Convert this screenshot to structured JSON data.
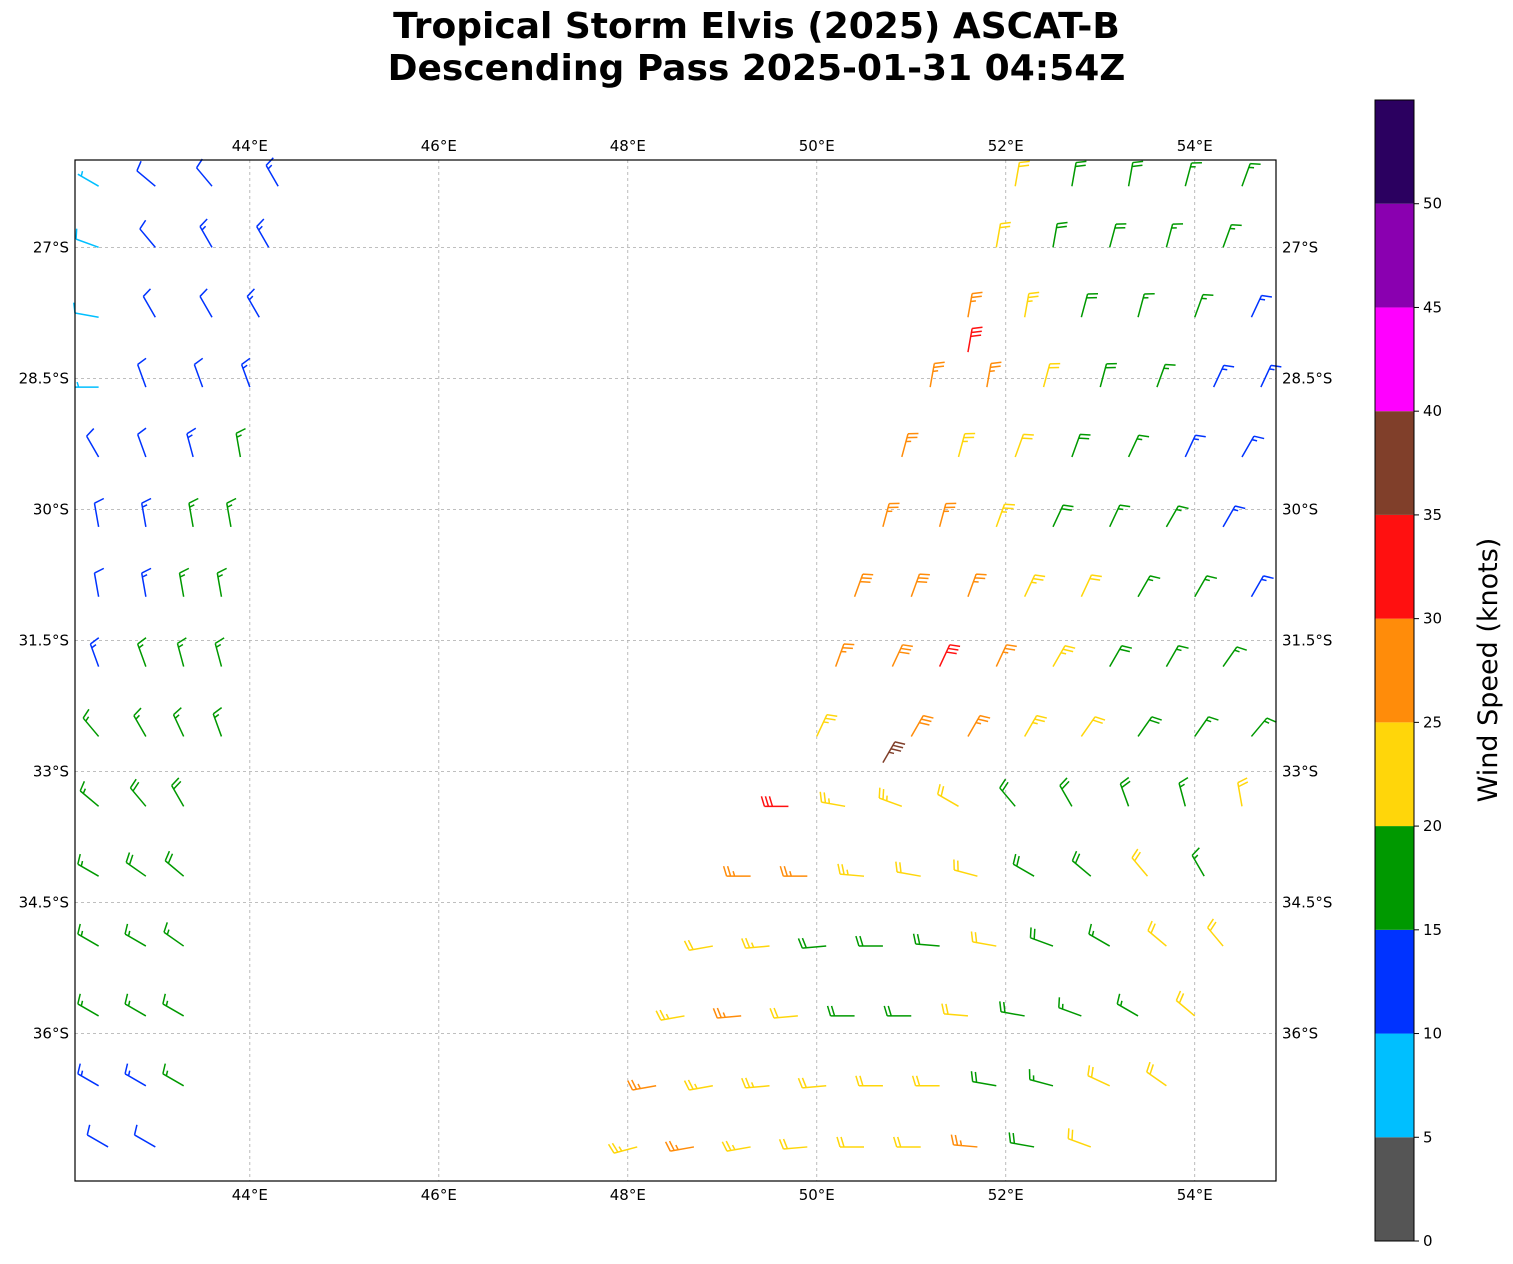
{
  "chart_data": {
    "type": "scatter",
    "subtype": "wind-barbs",
    "title": [
      "Tropical Storm Elvis (2025) ASCAT-B",
      "Descending Pass 2025-01-31 04:54Z"
    ],
    "xlim": [
      42.15,
      54.86
    ],
    "ylim": [
      -37.69,
      -26.0
    ],
    "x_ticks": [
      44,
      46,
      48,
      50,
      52,
      54
    ],
    "x_tick_labels": [
      "44°E",
      "46°E",
      "48°E",
      "50°E",
      "52°E",
      "54°E"
    ],
    "y_ticks": [
      -27,
      -28.5,
      -30,
      -31.5,
      -33,
      -34.5,
      -36
    ],
    "y_tick_labels": [
      "27°S",
      "28.5°S",
      "30°S",
      "31.5°S",
      "33°S",
      "34.5°S",
      "36°S"
    ],
    "grid": true,
    "colorbar": {
      "label": "Wind Speed (knots)",
      "range": [
        0,
        55
      ],
      "ticks": [
        0,
        5,
        10,
        15,
        20,
        25,
        30,
        35,
        40,
        45,
        50
      ],
      "tick_labels": [
        "0",
        "5",
        "10",
        "15",
        "20",
        "25",
        "30",
        "35",
        "40",
        "45",
        "50"
      ],
      "bins": [
        0,
        5,
        10,
        15,
        20,
        25,
        30,
        35,
        40,
        45,
        50,
        55
      ],
      "colors": [
        "#555555",
        "#00bfff",
        "#0033ff",
        "#009900",
        "#ffd60a",
        "#ff8c0a",
        "#ff1010",
        "#803f2a",
        "#ff00ff",
        "#8a00b0",
        "#2b0060"
      ]
    },
    "barb_fields": [
      "lon",
      "lat",
      "speed_kt",
      "dir_from_deg"
    ],
    "barbs": [
      [
        42.4,
        -26.3,
        7,
        300
      ],
      [
        43.0,
        -26.3,
        12,
        310
      ],
      [
        43.6,
        -26.3,
        12,
        320
      ],
      [
        44.3,
        -26.3,
        13,
        330
      ],
      [
        42.4,
        -27.0,
        8,
        290
      ],
      [
        43.0,
        -27.0,
        12,
        320
      ],
      [
        43.6,
        -27.0,
        13,
        330
      ],
      [
        44.2,
        -27.0,
        13,
        330
      ],
      [
        42.4,
        -27.8,
        8,
        280
      ],
      [
        43.0,
        -27.8,
        11,
        330
      ],
      [
        43.6,
        -27.8,
        12,
        330
      ],
      [
        44.1,
        -27.8,
        13,
        330
      ],
      [
        42.4,
        -28.6,
        7,
        270
      ],
      [
        42.9,
        -28.6,
        11,
        340
      ],
      [
        43.5,
        -28.6,
        12,
        340
      ],
      [
        44.0,
        -28.6,
        13,
        340
      ],
      [
        42.4,
        -29.4,
        11,
        330
      ],
      [
        42.9,
        -29.4,
        12,
        340
      ],
      [
        43.4,
        -29.4,
        13,
        345
      ],
      [
        43.9,
        -29.4,
        16,
        350
      ],
      [
        42.4,
        -30.2,
        12,
        350
      ],
      [
        42.9,
        -30.2,
        13,
        350
      ],
      [
        43.4,
        -30.2,
        16,
        350
      ],
      [
        43.8,
        -30.2,
        17,
        350
      ],
      [
        42.4,
        -31.0,
        12,
        350
      ],
      [
        42.9,
        -31.0,
        13,
        350
      ],
      [
        43.3,
        -31.0,
        16,
        350
      ],
      [
        43.7,
        -31.0,
        17,
        350
      ],
      [
        42.4,
        -31.8,
        13,
        340
      ],
      [
        42.9,
        -31.8,
        16,
        340
      ],
      [
        43.3,
        -31.8,
        17,
        345
      ],
      [
        43.7,
        -31.8,
        17,
        345
      ],
      [
        42.4,
        -32.6,
        16,
        320
      ],
      [
        42.9,
        -32.6,
        17,
        330
      ],
      [
        43.3,
        -32.6,
        17,
        335
      ],
      [
        43.7,
        -32.6,
        17,
        340
      ],
      [
        42.4,
        -33.4,
        17,
        310
      ],
      [
        42.9,
        -33.4,
        18,
        320
      ],
      [
        43.3,
        -33.4,
        18,
        330
      ],
      [
        42.4,
        -34.2,
        17,
        300
      ],
      [
        42.9,
        -34.2,
        18,
        305
      ],
      [
        43.3,
        -34.2,
        18,
        310
      ],
      [
        42.4,
        -35.0,
        16,
        300
      ],
      [
        42.9,
        -35.0,
        17,
        300
      ],
      [
        43.3,
        -35.0,
        17,
        305
      ],
      [
        42.4,
        -35.8,
        15,
        300
      ],
      [
        42.9,
        -35.8,
        16,
        300
      ],
      [
        43.3,
        -35.8,
        16,
        300
      ],
      [
        42.4,
        -36.6,
        13,
        300
      ],
      [
        42.9,
        -36.6,
        13,
        300
      ],
      [
        43.3,
        -36.6,
        15,
        300
      ],
      [
        42.5,
        -37.3,
        12,
        300
      ],
      [
        43.0,
        -37.3,
        12,
        300
      ],
      [
        52.1,
        -26.3,
        22,
        10
      ],
      [
        52.7,
        -26.3,
        18,
        10
      ],
      [
        53.3,
        -26.3,
        18,
        10
      ],
      [
        53.9,
        -26.3,
        17,
        15
      ],
      [
        54.5,
        -26.3,
        16,
        20
      ],
      [
        51.9,
        -27.0,
        22,
        10
      ],
      [
        52.5,
        -27.0,
        19,
        10
      ],
      [
        53.1,
        -27.0,
        18,
        15
      ],
      [
        53.7,
        -27.0,
        17,
        15
      ],
      [
        54.3,
        -27.0,
        16,
        20
      ],
      [
        51.6,
        -27.8,
        27,
        10
      ],
      [
        52.2,
        -27.8,
        23,
        10
      ],
      [
        52.8,
        -27.8,
        18,
        15
      ],
      [
        53.4,
        -27.8,
        17,
        15
      ],
      [
        54.0,
        -27.8,
        16,
        20
      ],
      [
        54.6,
        -27.8,
        14,
        25
      ],
      [
        51.6,
        -28.2,
        31,
        10
      ],
      [
        51.2,
        -28.6,
        27,
        10
      ],
      [
        51.8,
        -28.6,
        26,
        10
      ],
      [
        52.4,
        -28.6,
        22,
        15
      ],
      [
        53.0,
        -28.6,
        18,
        15
      ],
      [
        53.6,
        -28.6,
        17,
        20
      ],
      [
        54.2,
        -28.6,
        14,
        25
      ],
      [
        54.7,
        -28.6,
        13,
        25
      ],
      [
        50.9,
        -29.4,
        27,
        15
      ],
      [
        51.5,
        -29.4,
        24,
        15
      ],
      [
        52.1,
        -29.4,
        22,
        20
      ],
      [
        52.7,
        -29.4,
        18,
        20
      ],
      [
        53.3,
        -29.4,
        17,
        25
      ],
      [
        53.9,
        -29.4,
        14,
        25
      ],
      [
        54.5,
        -29.4,
        13,
        30
      ],
      [
        50.7,
        -30.2,
        27,
        15
      ],
      [
        51.3,
        -30.2,
        26,
        15
      ],
      [
        51.9,
        -30.2,
        23,
        20
      ],
      [
        52.5,
        -30.2,
        19,
        25
      ],
      [
        53.1,
        -30.2,
        17,
        25
      ],
      [
        53.7,
        -30.2,
        16,
        30
      ],
      [
        54.3,
        -30.2,
        14,
        30
      ],
      [
        50.4,
        -31.0,
        28,
        20
      ],
      [
        51.0,
        -31.0,
        28,
        20
      ],
      [
        51.6,
        -31.0,
        26,
        20
      ],
      [
        52.2,
        -31.0,
        23,
        25
      ],
      [
        52.8,
        -31.0,
        21,
        25
      ],
      [
        53.4,
        -31.0,
        17,
        30
      ],
      [
        54.0,
        -31.0,
        16,
        30
      ],
      [
        54.6,
        -31.0,
        14,
        30
      ],
      [
        50.2,
        -31.8,
        27,
        20
      ],
      [
        50.8,
        -31.8,
        29,
        25
      ],
      [
        51.3,
        -31.8,
        31,
        25
      ],
      [
        51.9,
        -31.8,
        27,
        25
      ],
      [
        52.5,
        -31.8,
        23,
        30
      ],
      [
        53.1,
        -31.8,
        19,
        30
      ],
      [
        53.7,
        -31.8,
        17,
        30
      ],
      [
        54.3,
        -31.8,
        16,
        35
      ],
      [
        50.0,
        -32.6,
        24,
        25
      ],
      [
        50.7,
        -32.9,
        37,
        30
      ],
      [
        51.0,
        -32.6,
        29,
        30
      ],
      [
        51.6,
        -32.6,
        27,
        30
      ],
      [
        52.2,
        -32.6,
        24,
        30
      ],
      [
        52.8,
        -32.6,
        22,
        35
      ],
      [
        53.4,
        -32.6,
        18,
        35
      ],
      [
        54.0,
        -32.6,
        17,
        35
      ],
      [
        54.6,
        -32.6,
        16,
        40
      ],
      [
        49.7,
        -33.4,
        31,
        270
      ],
      [
        50.3,
        -33.4,
        24,
        280
      ],
      [
        50.9,
        -33.4,
        23,
        290
      ],
      [
        51.5,
        -33.4,
        22,
        300
      ],
      [
        52.1,
        -33.4,
        19,
        320
      ],
      [
        52.7,
        -33.4,
        19,
        330
      ],
      [
        53.3,
        -33.4,
        18,
        340
      ],
      [
        53.9,
        -33.4,
        17,
        345
      ],
      [
        54.5,
        -33.4,
        21,
        350
      ],
      [
        49.3,
        -34.2,
        27,
        270
      ],
      [
        49.9,
        -34.2,
        26,
        270
      ],
      [
        50.5,
        -34.2,
        23,
        275
      ],
      [
        51.1,
        -34.2,
        22,
        280
      ],
      [
        51.7,
        -34.2,
        21,
        285
      ],
      [
        52.3,
        -34.2,
        18,
        300
      ],
      [
        52.9,
        -34.2,
        18,
        310
      ],
      [
        53.5,
        -34.2,
        21,
        320
      ],
      [
        54.1,
        -34.2,
        17,
        330
      ],
      [
        48.9,
        -35.0,
        22,
        260
      ],
      [
        49.5,
        -35.0,
        23,
        265
      ],
      [
        50.1,
        -35.0,
        18,
        265
      ],
      [
        50.7,
        -35.0,
        19,
        270
      ],
      [
        51.3,
        -35.0,
        18,
        275
      ],
      [
        51.9,
        -35.0,
        21,
        280
      ],
      [
        52.5,
        -35.0,
        18,
        290
      ],
      [
        53.1,
        -35.0,
        17,
        300
      ],
      [
        53.7,
        -35.0,
        22,
        310
      ],
      [
        54.3,
        -35.0,
        21,
        320
      ],
      [
        48.6,
        -35.8,
        23,
        260
      ],
      [
        49.2,
        -35.8,
        26,
        265
      ],
      [
        49.8,
        -35.8,
        22,
        265
      ],
      [
        50.4,
        -35.8,
        19,
        270
      ],
      [
        51.0,
        -35.8,
        18,
        270
      ],
      [
        51.6,
        -35.8,
        21,
        275
      ],
      [
        52.2,
        -35.8,
        18,
        280
      ],
      [
        52.8,
        -35.8,
        17,
        290
      ],
      [
        53.4,
        -35.8,
        17,
        300
      ],
      [
        54.0,
        -35.8,
        22,
        310
      ],
      [
        48.3,
        -36.6,
        26,
        260
      ],
      [
        48.9,
        -36.6,
        24,
        260
      ],
      [
        49.5,
        -36.6,
        23,
        265
      ],
      [
        50.1,
        -36.6,
        22,
        265
      ],
      [
        50.7,
        -36.6,
        21,
        270
      ],
      [
        51.3,
        -36.6,
        22,
        270
      ],
      [
        51.9,
        -36.6,
        18,
        280
      ],
      [
        52.5,
        -36.6,
        17,
        285
      ],
      [
        53.1,
        -36.6,
        21,
        295
      ],
      [
        53.7,
        -36.6,
        22,
        305
      ],
      [
        48.1,
        -37.3,
        23,
        255
      ],
      [
        48.7,
        -37.3,
        26,
        260
      ],
      [
        49.3,
        -37.3,
        23,
        260
      ],
      [
        49.9,
        -37.3,
        22,
        265
      ],
      [
        50.5,
        -37.3,
        22,
        270
      ],
      [
        51.1,
        -37.3,
        21,
        270
      ],
      [
        51.7,
        -37.3,
        26,
        275
      ],
      [
        52.3,
        -37.3,
        18,
        280
      ],
      [
        52.9,
        -37.3,
        21,
        290
      ]
    ]
  }
}
